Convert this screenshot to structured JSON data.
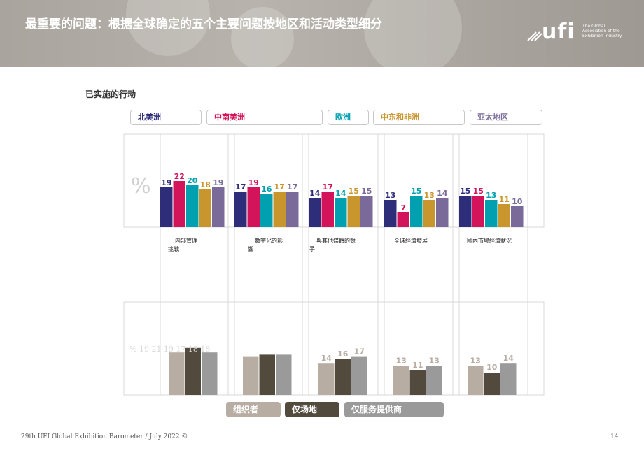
{
  "title": "最重要的问题：根据全球确定的五个主要问题按地区和活动类型细分",
  "logo": {
    "mark": "ufi",
    "tagline": [
      "The Global",
      "Association of the",
      "Exhibition Industry"
    ]
  },
  "subtitle": "已实施的行动",
  "footer": "29th UFI Global Exhibition Barometer / July 2022 ©",
  "page_number": "14",
  "colors": {
    "north_america": "#2e2d7a",
    "latin_america": "#d4145a",
    "europe": "#00a0b0",
    "mea": "#c9962e",
    "asia_pacific": "#7a6a99",
    "organizers": "#b8ada2",
    "venues": "#524a3c",
    "service_providers": "#9a9a9a"
  },
  "chart_data": [
    {
      "type": "bar",
      "ylabel": "%",
      "ylim": [
        0,
        30
      ],
      "categories": [
        "内部管理挑戰",
        "數字化的影響",
        "與其他媒體的競爭",
        "全球經濟發展",
        "國內市場經濟狀況"
      ],
      "series": [
        {
          "name": "北美洲",
          "values": [
            19,
            17,
            14,
            13,
            15
          ]
        },
        {
          "name": "中南美洲",
          "values": [
            22,
            19,
            17,
            7,
            15
          ]
        },
        {
          "name": "欧洲",
          "values": [
            20,
            16,
            14,
            15,
            13
          ]
        },
        {
          "name": "中东和非洲",
          "values": [
            18,
            17,
            15,
            13,
            11
          ]
        },
        {
          "name": "亚太地区",
          "values": [
            19,
            17,
            15,
            14,
            10
          ]
        }
      ]
    },
    {
      "type": "bar",
      "ylabel": "%",
      "ylim": [
        0,
        30
      ],
      "categories": [
        "内部管理挑戰",
        "數字化的影響",
        "與其他媒體的競爭",
        "全球經濟發展",
        "國內市場經濟狀況"
      ],
      "series": [
        {
          "name": "组织者",
          "values": [
            19,
            17,
            14,
            13,
            13
          ]
        },
        {
          "name": "仅场地",
          "values": [
            21,
            18,
            16,
            11,
            10
          ]
        },
        {
          "name": "仅服务提供商",
          "values": [
            19,
            18,
            17,
            13,
            14
          ]
        }
      ],
      "first_group_labels_text": "% 19 21 19 17 18 18"
    }
  ]
}
